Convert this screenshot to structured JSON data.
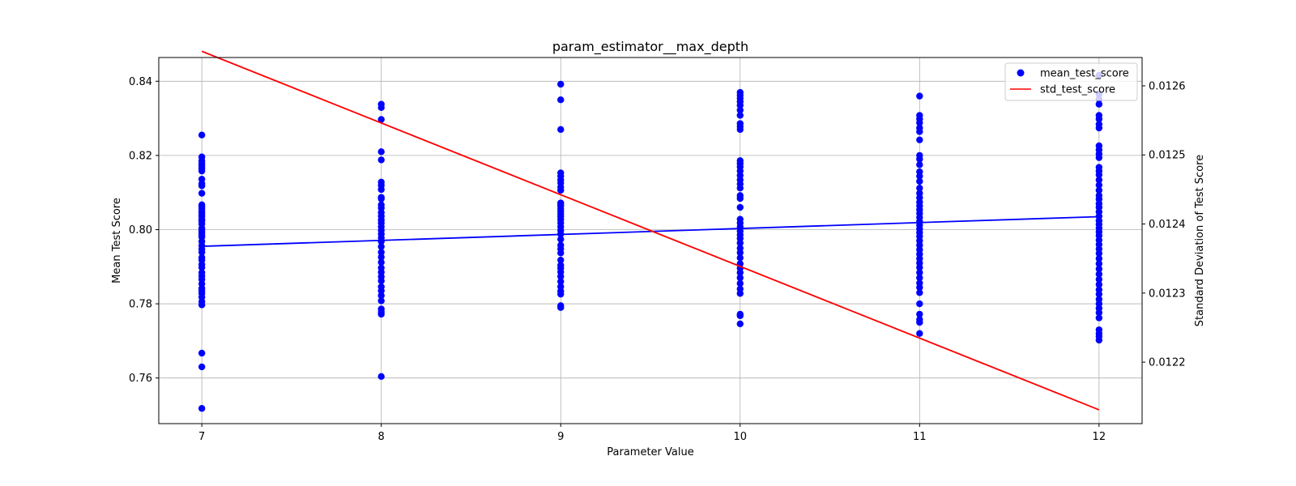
{
  "chart_data": {
    "type": "scatter",
    "title": "param_estimator__max_depth",
    "xlabel": "Parameter Value",
    "ylabel": "Mean Test Score",
    "y2label": "Standard Deviation of Test Score",
    "xlim": [
      6.76,
      12.24
    ],
    "ylim": [
      0.7477,
      0.8464
    ],
    "y2lim": [
      0.012111,
      0.012641
    ],
    "x_ticks": [
      7,
      8,
      9,
      10,
      11,
      12
    ],
    "y_ticks": [
      0.76,
      0.78,
      0.8,
      0.82,
      0.84
    ],
    "y2_ticks": [
      0.0122,
      0.0123,
      0.0124,
      0.0125,
      0.0126
    ],
    "grid": true,
    "legend_position": "upper right",
    "colors": {
      "scatter": "#0000ff",
      "trend": "#0000ff",
      "std": "#ff0000",
      "axes": "#000000",
      "grid": "#b0b0b0"
    },
    "series": [
      {
        "name": "mean_test_score",
        "kind": "scatter",
        "axis": "left",
        "points": [
          {
            "x": 7,
            "y": [
              0.8255,
              0.8196,
              0.8186,
              0.8178,
              0.8172,
              0.8165,
              0.8158,
              0.8136,
              0.8124,
              0.8118,
              0.8098,
              0.8067,
              0.8061,
              0.8056,
              0.8048,
              0.8042,
              0.8036,
              0.8028,
              0.8023,
              0.8015,
              0.8004,
              0.7998,
              0.7992,
              0.7986,
              0.798,
              0.7968,
              0.7957,
              0.7948,
              0.7939,
              0.7925,
              0.7918,
              0.7906,
              0.7898,
              0.7884,
              0.7875,
              0.7866,
              0.7854,
              0.7842,
              0.7835,
              0.7828,
              0.7818,
              0.7806,
              0.7797,
              0.7667,
              0.763,
              0.7518
            ]
          },
          {
            "x": 8,
            "y": [
              0.8338,
              0.8329,
              0.8297,
              0.821,
              0.8188,
              0.8128,
              0.8119,
              0.8108,
              0.8087,
              0.8083,
              0.8067,
              0.8058,
              0.8046,
              0.8036,
              0.8026,
              0.8018,
              0.8008,
              0.7998,
              0.7988,
              0.7978,
              0.7968,
              0.7954,
              0.7939,
              0.7926,
              0.7912,
              0.7897,
              0.7885,
              0.7873,
              0.7862,
              0.7846,
              0.7835,
              0.7822,
              0.7808,
              0.7786,
              0.7778,
              0.7772,
              0.7604
            ]
          },
          {
            "x": 9,
            "y": [
              0.8392,
              0.835,
              0.827,
              0.8153,
              0.8144,
              0.8134,
              0.8126,
              0.8115,
              0.8106,
              0.8072,
              0.8068,
              0.8063,
              0.8056,
              0.8049,
              0.8042,
              0.8035,
              0.8027,
              0.8018,
              0.8008,
              0.7998,
              0.7988,
              0.7974,
              0.7958,
              0.7948,
              0.7937,
              0.7918,
              0.7904,
              0.7896,
              0.7886,
              0.7874,
              0.786,
              0.7846,
              0.7834,
              0.7826,
              0.7795,
              0.779
            ]
          },
          {
            "x": 10,
            "y": [
              0.837,
              0.8362,
              0.8354,
              0.8345,
              0.8335,
              0.8322,
              0.8308,
              0.8286,
              0.8278,
              0.827,
              0.8186,
              0.8178,
              0.8169,
              0.8158,
              0.8146,
              0.8134,
              0.8123,
              0.8112,
              0.8092,
              0.8084,
              0.806,
              0.8028,
              0.8018,
              0.8008,
              0.7996,
              0.7986,
              0.7976,
              0.7964,
              0.795,
              0.7938,
              0.7924,
              0.7908,
              0.7896,
              0.7884,
              0.787,
              0.7855,
              0.784,
              0.7828,
              0.7772,
              0.7768,
              0.7746
            ]
          },
          {
            "x": 11,
            "y": [
              0.836,
              0.8308,
              0.8298,
              0.8288,
              0.8274,
              0.8264,
              0.8242,
              0.82,
              0.819,
              0.8175,
              0.8156,
              0.8144,
              0.813,
              0.8112,
              0.8098,
              0.8086,
              0.8074,
              0.8064,
              0.8054,
              0.8044,
              0.8033,
              0.8022,
              0.8012,
              0.8002,
              0.7992,
              0.7982,
              0.797,
              0.7958,
              0.7946,
              0.7934,
              0.7922,
              0.791,
              0.7898,
              0.7884,
              0.787,
              0.7856,
              0.7844,
              0.783,
              0.78,
              0.7772,
              0.7758,
              0.775,
              0.772
            ]
          },
          {
            "x": 12,
            "y": [
              0.8416,
              0.8365,
              0.8352,
              0.8338,
              0.8308,
              0.8298,
              0.8284,
              0.8274,
              0.8226,
              0.8215,
              0.8204,
              0.8194,
              0.8168,
              0.8158,
              0.8148,
              0.8134,
              0.812,
              0.8106,
              0.8092,
              0.8082,
              0.807,
              0.806,
              0.8048,
              0.8036,
              0.8024,
              0.8014,
              0.8004,
              0.7994,
              0.7984,
              0.7972,
              0.796,
              0.7948,
              0.7936,
              0.7922,
              0.7908,
              0.7894,
              0.788,
              0.7866,
              0.7852,
              0.7838,
              0.7826,
              0.7812,
              0.78,
              0.7788,
              0.7776,
              0.7762,
              0.773,
              0.772,
              0.7712,
              0.7702
            ]
          }
        ]
      },
      {
        "name": "",
        "kind": "trend",
        "axis": "left",
        "x": [
          7,
          12
        ],
        "y": [
          0.7955,
          0.8035
        ]
      },
      {
        "name": "std_test_score",
        "kind": "line",
        "axis": "right",
        "x": [
          7,
          12
        ],
        "y": [
          0.01265,
          0.012131
        ]
      }
    ]
  }
}
